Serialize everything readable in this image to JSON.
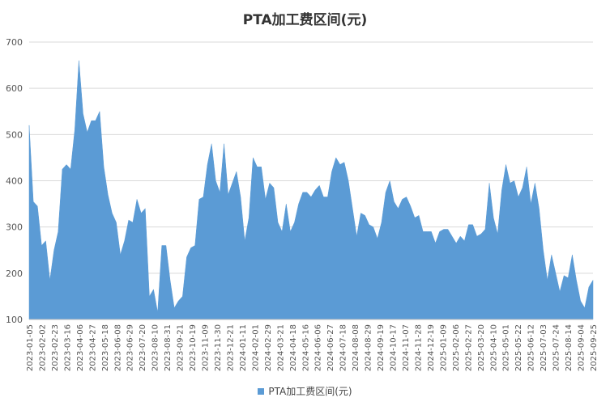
{
  "chart_data": {
    "type": "area",
    "title": "PTA加工费区间(元)",
    "xlabel": "",
    "ylabel": "",
    "ylim": [
      100,
      700
    ],
    "yticks": [
      100,
      200,
      300,
      400,
      500,
      600,
      700
    ],
    "grid": true,
    "legend_position": "bottom",
    "color": "#5b9bd5",
    "x_tick_labels": [
      "2023-01-05",
      "2023-02-02",
      "2023-02-23",
      "2023-03-16",
      "2023-04-06",
      "2023-04-27",
      "2023-05-18",
      "2023-06-08",
      "2023-06-29",
      "2023-07-20",
      "2023-08-10",
      "2023-08-31",
      "2023-09-21",
      "2023-10-19",
      "2023-11-09",
      "2023-11-30",
      "2023-12-21",
      "2024-01-11",
      "2024-02-01",
      "2024-02-29",
      "2024-03-21",
      "2024-04-18",
      "2024-05-16",
      "2024-06-06",
      "2024-06-27",
      "2024-07-18",
      "2024-08-08",
      "2024-08-29",
      "2024-09-19",
      "2024-10-17",
      "2024-11-07",
      "2024-11-28",
      "2024-12-19",
      "2025-01-09",
      "2025-02-06",
      "2025-02-27",
      "2025-03-20",
      "2025-04-10",
      "2025-05-01",
      "2025-05-22",
      "2025-06-12",
      "2025-07-03",
      "2025-07-24",
      "2025-08-14",
      "2025-09-04",
      "2025-09-25"
    ],
    "series": [
      {
        "name": "PTA加工费区间(元)",
        "values": [
          520,
          355,
          345,
          260,
          270,
          185,
          250,
          290,
          425,
          435,
          425,
          510,
          660,
          545,
          505,
          530,
          530,
          550,
          430,
          370,
          330,
          310,
          240,
          270,
          315,
          310,
          360,
          330,
          340,
          150,
          165,
          115,
          260,
          260,
          185,
          125,
          140,
          150,
          235,
          255,
          260,
          360,
          365,
          435,
          480,
          400,
          375,
          480,
          370,
          395,
          420,
          365,
          270,
          320,
          450,
          430,
          430,
          360,
          395,
          385,
          310,
          290,
          350,
          290,
          310,
          350,
          375,
          375,
          365,
          380,
          390,
          365,
          365,
          420,
          450,
          435,
          440,
          400,
          340,
          280,
          330,
          325,
          305,
          300,
          275,
          310,
          375,
          400,
          355,
          340,
          360,
          365,
          345,
          320,
          325,
          290,
          290,
          290,
          265,
          290,
          295,
          295,
          280,
          265,
          280,
          270,
          305,
          305,
          280,
          285,
          295,
          395,
          320,
          285,
          380,
          435,
          395,
          400,
          365,
          385,
          430,
          350,
          395,
          340,
          250,
          185,
          240,
          200,
          160,
          195,
          190,
          240,
          185,
          140,
          125,
          170,
          185
        ]
      }
    ]
  }
}
